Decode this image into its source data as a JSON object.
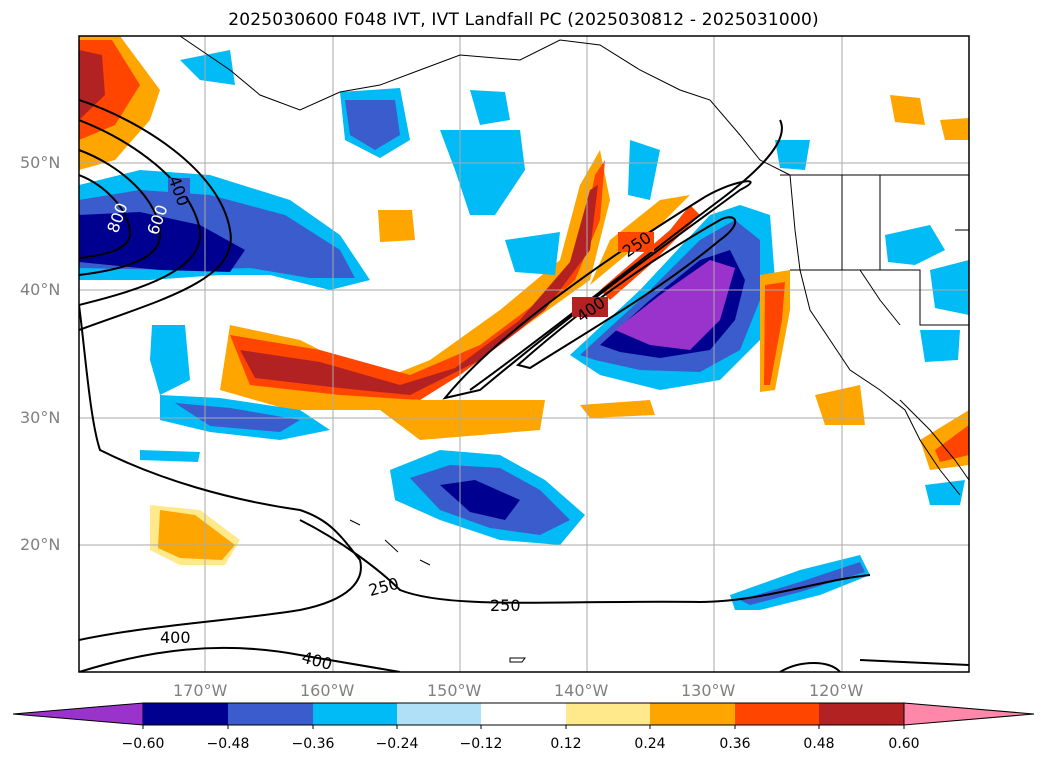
{
  "title": "2025030600 F048 IVT, IVT Landfall PC (2025030812 - 2025031000)",
  "map": {
    "lat_labels": [
      "50°N",
      "40°N",
      "30°N",
      "20°N"
    ],
    "lon_labels": [
      "170°W",
      "160°W",
      "150°W",
      "140°W",
      "130°W",
      "120°W"
    ],
    "contour_labels": [
      "250",
      "400",
      "400",
      "600",
      "800",
      "250",
      "250",
      "400",
      "400"
    ]
  },
  "colorbar": {
    "ticks": [
      "−0.60",
      "−0.48",
      "−0.36",
      "−0.24",
      "−0.12",
      "0.12",
      "0.24",
      "0.36",
      "0.48",
      "0.60"
    ],
    "colors": [
      "#9933cc",
      "#000090",
      "#3a5ccc",
      "#00bbf5",
      "#b0e0f8",
      "#ffffff",
      "#ffe98a",
      "#ffa500",
      "#ff4500",
      "#b22222",
      "#ff88aa"
    ]
  }
}
